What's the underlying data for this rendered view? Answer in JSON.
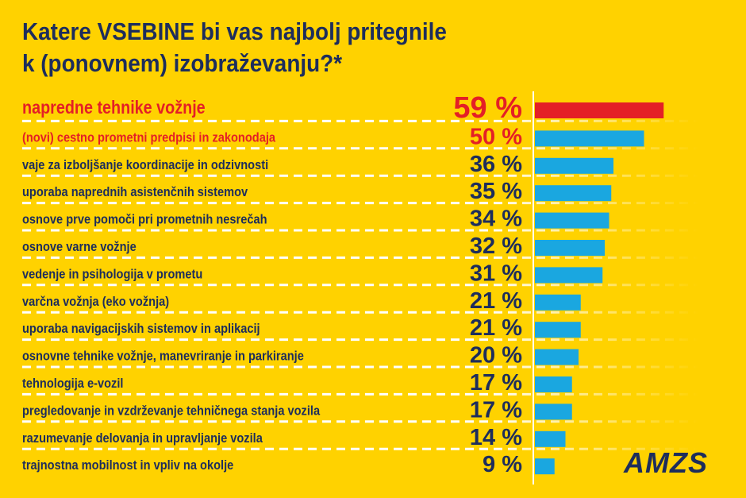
{
  "title_lines": [
    "Katere VSEBINE bi vas najbolj pritegnile",
    "k (ponovnem) izobraževanju?*"
  ],
  "logo": "AMZS",
  "colors": {
    "background": "#FFD200",
    "text": "#1d2d5c",
    "highlight": "#e41f26",
    "bar": "#1aa7e0",
    "top_bar": "#e41f26"
  },
  "chart_data": {
    "type": "bar",
    "orientation": "horizontal",
    "unit": "%",
    "categories": [
      "napredne tehnike vožnje",
      "(novi) cestno prometni predpisi in zakonodaja",
      "vaje za izboljšanje koordinacije in odzivnosti",
      "uporaba naprednih asistenčnih sistemov",
      "osnove prve pomoči pri prometnih nesrečah",
      "osnove varne vožnje",
      "vedenje in psihologija v prometu",
      "varčna vožnja (eko vožnja)",
      "uporaba navigacijskih sistemov in aplikacij",
      "osnovne tehnike vožnje, manevriranje in parkiranje",
      "tehnologija e-vozil",
      "pregledovanje in vzdrževanje tehničnega stanja vozila",
      "razumevanje delovanja in upravljanje vozila",
      "trajnostna mobilnost in vpliv na okolje"
    ],
    "values": [
      59,
      50,
      36,
      35,
      34,
      32,
      31,
      21,
      21,
      20,
      17,
      17,
      14,
      9
    ],
    "value_labels": [
      "59 %",
      "50 %",
      "36 %",
      "35 %",
      "34 %",
      "32 %",
      "31 %",
      "21 %",
      "21 %",
      "20 %",
      "17 %",
      "17 %",
      "14 %",
      "9 %"
    ],
    "highlighted": [
      0,
      1
    ],
    "grid": false
  }
}
